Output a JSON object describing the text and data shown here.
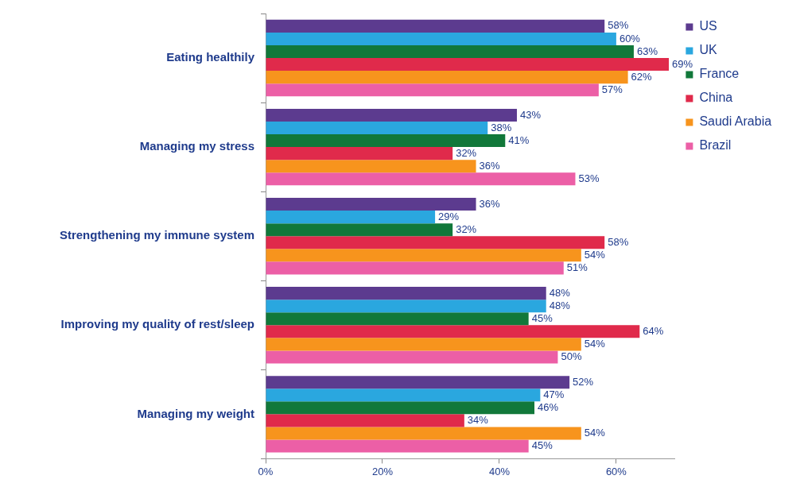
{
  "chart_data": {
    "type": "bar",
    "orientation": "horizontal",
    "categories": [
      "Eating healthily",
      "Managing my stress",
      "Strengthening my immune system",
      "Improving my quality of rest/sleep",
      "Managing my weight"
    ],
    "series": [
      {
        "name": "US",
        "color": "#5c3b8f",
        "values": [
          58,
          43,
          36,
          48,
          52
        ],
        "value_labels": [
          "58%",
          "43%",
          "36%",
          "48%",
          "52%"
        ]
      },
      {
        "name": "UK",
        "color": "#2aa7df",
        "values": [
          60,
          38,
          29,
          48,
          47
        ],
        "value_labels": [
          "60%",
          "38%",
          "29%",
          "48%",
          "47%"
        ]
      },
      {
        "name": "France",
        "color": "#11783a",
        "values": [
          63,
          41,
          32,
          45,
          46
        ],
        "value_labels": [
          "63%",
          "41%",
          "32%",
          "45%",
          "46%"
        ]
      },
      {
        "name": "China",
        "color": "#e02a4b",
        "values": [
          69,
          32,
          58,
          64,
          34
        ],
        "value_labels": [
          "69%",
          "32%",
          "58%",
          "64%",
          "34%"
        ]
      },
      {
        "name": "Saudi Arabia",
        "color": "#f7941d",
        "values": [
          62,
          36,
          54,
          54,
          54
        ],
        "value_labels": [
          "62%",
          "36%",
          "54%",
          "54%",
          "54%"
        ]
      },
      {
        "name": "Brazil",
        "color": "#ec5fa6",
        "values": [
          57,
          53,
          51,
          50,
          45
        ],
        "value_labels": [
          "57%",
          "53%",
          "51%",
          "50%",
          "45%"
        ]
      }
    ],
    "xlim": [
      0,
      70
    ],
    "xticks": [
      {
        "value": 0,
        "label": "0%"
      },
      {
        "value": 20,
        "label": "20%"
      },
      {
        "value": 40,
        "label": "40%"
      },
      {
        "value": 60,
        "label": "60%"
      }
    ],
    "grid": false,
    "legend": "top right"
  }
}
